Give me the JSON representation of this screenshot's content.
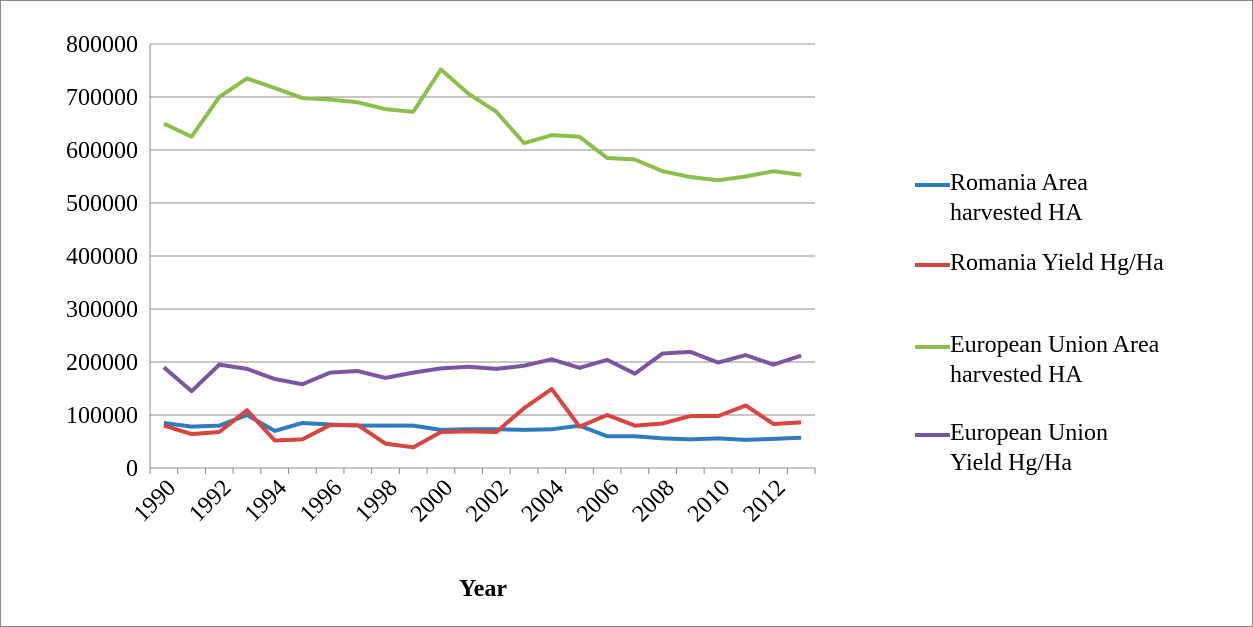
{
  "chart_data": {
    "type": "line",
    "x_label": "Year",
    "categories": [
      "1990",
      null,
      "1992",
      null,
      "1994",
      null,
      "1996",
      null,
      "1998",
      null,
      "2000",
      null,
      "2002",
      null,
      "2004",
      null,
      "2006",
      null,
      "2008",
      null,
      "2010",
      null,
      "2012",
      null
    ],
    "ylim": [
      0,
      800000
    ],
    "yticks": [
      0,
      100000,
      200000,
      300000,
      400000,
      500000,
      600000,
      700000,
      800000
    ],
    "grid": true,
    "legend": "right",
    "series": [
      {
        "name": "Romania Area harvested HA",
        "color": "#2e7bbf",
        "values": [
          85000,
          78000,
          80000,
          100000,
          70000,
          85000,
          82000,
          80000,
          80000,
          80000,
          72000,
          73000,
          73000,
          72000,
          73000,
          80000,
          60000,
          60000,
          56000,
          54000,
          56000,
          53000,
          55000,
          57000
        ]
      },
      {
        "name": "Romania Yield Hg/Ha",
        "color": "#d9443f",
        "values": [
          80000,
          64000,
          68000,
          109000,
          52000,
          54000,
          81000,
          81000,
          46000,
          39000,
          68000,
          69000,
          68000,
          113000,
          149000,
          78000,
          100000,
          80000,
          84000,
          98000,
          98000,
          118000,
          83000,
          86000
        ]
      },
      {
        "name": "European Union Area harvested HA",
        "color": "#8cbf4a",
        "values": [
          650000,
          625000,
          700000,
          735000,
          717000,
          698000,
          695000,
          690000,
          677000,
          672000,
          752000,
          706000,
          672000,
          613000,
          628000,
          625000,
          585000,
          582000,
          560000,
          549000,
          543000,
          550000,
          560000,
          553000
        ]
      },
      {
        "name": "European Union Yield Hg/Ha",
        "color": "#7b55a0",
        "values": [
          190000,
          145000,
          195000,
          187000,
          168000,
          158000,
          180000,
          183000,
          170000,
          180000,
          188000,
          191000,
          187000,
          193000,
          205000,
          189000,
          204000,
          178000,
          216000,
          219000,
          199000,
          213000,
          195000,
          212000
        ]
      }
    ]
  }
}
